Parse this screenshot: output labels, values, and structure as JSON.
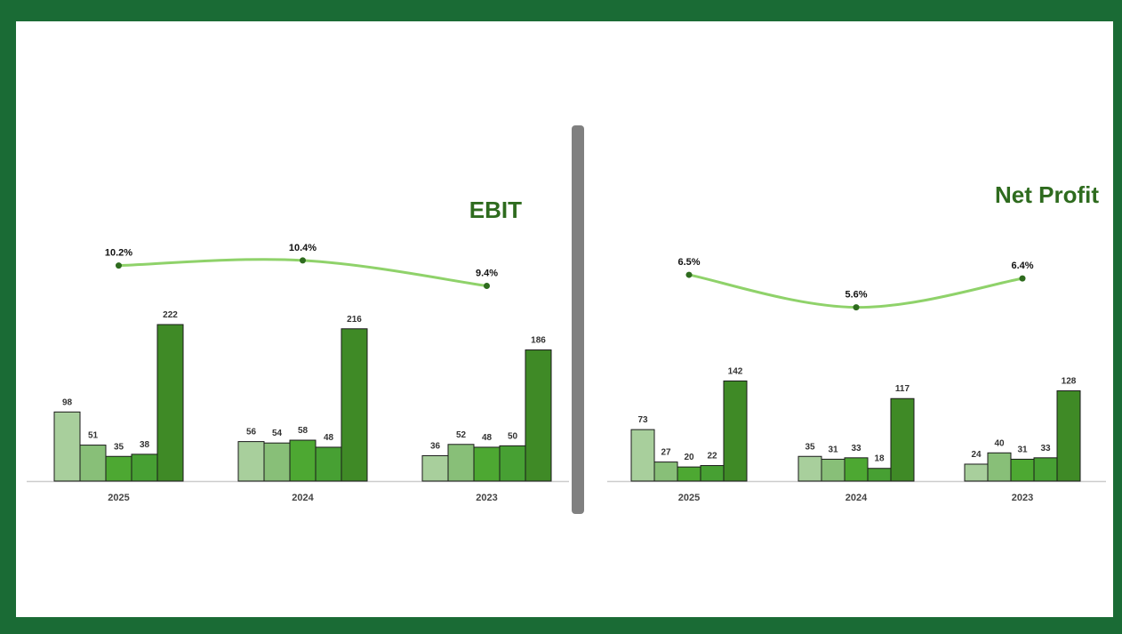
{
  "colors": {
    "frame": "#1a6b35",
    "background": "#ffffff",
    "title": "#2e6b1e",
    "line": "#8fd26a",
    "marker": "#2e6b1e",
    "bars": [
      "#a8cf9c",
      "#88bf78",
      "#4da832",
      "#47a033",
      "#3f8a26"
    ],
    "divider": "#808080",
    "axis": "#cccccc"
  },
  "chart_data": [
    {
      "type": "bar",
      "title": "EBIT",
      "categories": [
        "2025",
        "2024",
        "2023"
      ],
      "bar_values": [
        [
          98,
          51,
          35,
          38,
          222
        ],
        [
          56,
          54,
          58,
          48,
          216
        ],
        [
          36,
          52,
          48,
          50,
          186
        ]
      ],
      "margin_line": {
        "values": [
          10.2,
          10.4,
          9.4
        ],
        "labels": [
          "10.2%",
          "10.4%",
          "9.4%"
        ],
        "range": [
          9.0,
          10.5
        ]
      },
      "ylim": [
        0,
        230
      ],
      "grid": false
    },
    {
      "type": "bar",
      "title": "Net Profit",
      "categories": [
        "2025",
        "2024",
        "2023"
      ],
      "bar_values": [
        [
          73,
          27,
          20,
          22,
          142
        ],
        [
          35,
          31,
          33,
          18,
          117
        ],
        [
          24,
          40,
          31,
          33,
          128
        ]
      ],
      "margin_line": {
        "values": [
          6.5,
          5.6,
          6.4
        ],
        "labels": [
          "6.5%",
          "5.6%",
          "6.4%"
        ],
        "range": [
          5.0,
          6.6
        ]
      },
      "ylim": [
        0,
        230
      ],
      "grid": false
    }
  ]
}
